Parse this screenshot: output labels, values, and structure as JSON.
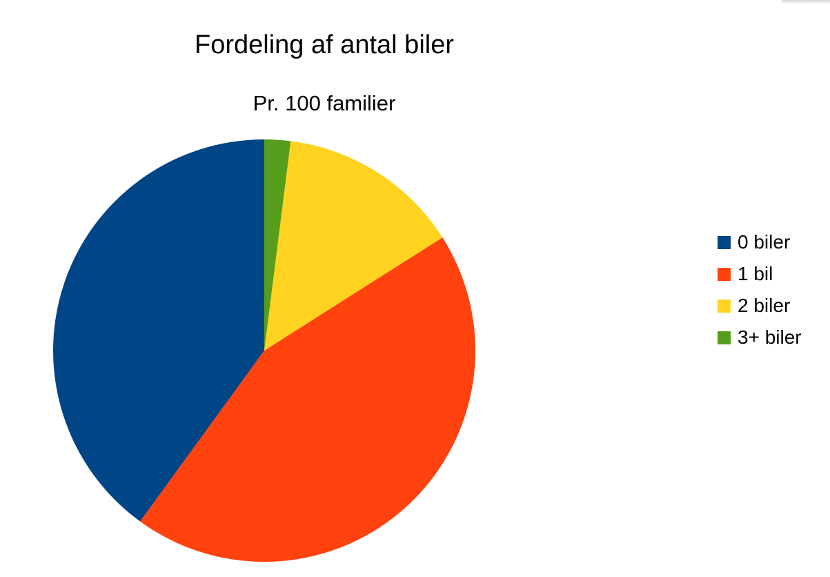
{
  "chart_data": {
    "type": "pie",
    "title": "Fordeling af antal biler",
    "subtitle": "Pr. 100 familier",
    "categories": [
      "0 biler",
      "1 bil",
      "2 biler",
      "3+ biler"
    ],
    "values": [
      40,
      44,
      14,
      2
    ],
    "colors": [
      "#004586",
      "#ff420e",
      "#ffd320",
      "#579d1c"
    ],
    "start_angle_deg": 0,
    "direction": "counterclockwise",
    "legend_position": "right"
  }
}
